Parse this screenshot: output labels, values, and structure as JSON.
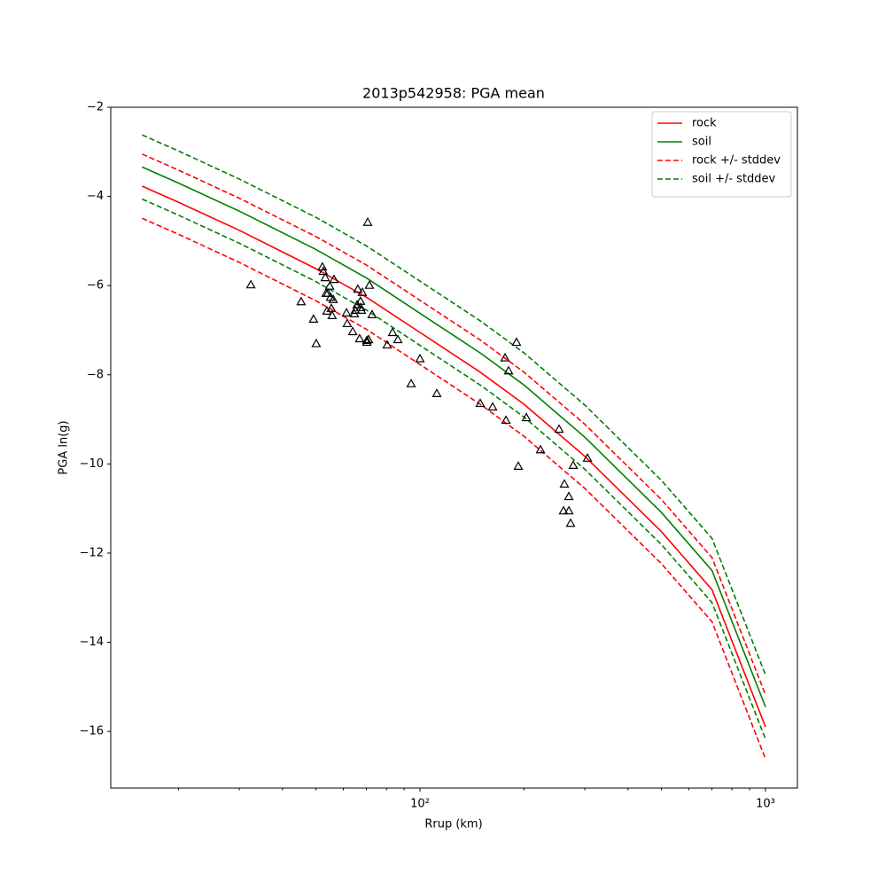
{
  "chart_data": {
    "type": "line",
    "title": "2013p542958: PGA mean",
    "x_label": "Rrup (km)",
    "y_label": "PGA ln(g)",
    "x_scale": "log",
    "xlim": [
      12.74,
      1237
    ],
    "ylim": [
      -17.27,
      -2.0
    ],
    "xticks": [
      {
        "value": 100,
        "label": "10²"
      },
      {
        "value": 1000,
        "label": "10³"
      }
    ],
    "xminorticks": [
      20,
      30,
      40,
      50,
      60,
      70,
      80,
      90,
      200,
      300,
      400,
      500,
      600,
      700,
      800,
      900
    ],
    "yticks": [
      {
        "value": -2,
        "label": "−2"
      },
      {
        "value": -4,
        "label": "−4"
      },
      {
        "value": -6,
        "label": "−6"
      },
      {
        "value": -8,
        "label": "−8"
      },
      {
        "value": -10,
        "label": "−10"
      },
      {
        "value": -12,
        "label": "−12"
      },
      {
        "value": -14,
        "label": "−14"
      },
      {
        "value": -16,
        "label": "−16"
      }
    ],
    "legend": "upper right",
    "x": [
      15.7,
      20,
      30,
      50,
      70,
      100,
      150,
      200,
      300,
      500,
      700,
      1000
    ],
    "series": [
      {
        "name": "rock",
        "color": "#ff0000",
        "dashed": false,
        "values": [
          -3.77,
          -4.13,
          -4.76,
          -5.62,
          -6.26,
          -7.05,
          -7.95,
          -8.66,
          -9.83,
          -11.52,
          -12.82,
          -15.9
        ]
      },
      {
        "name": "soil",
        "color": "#008000",
        "dashed": false,
        "values": [
          -3.34,
          -3.7,
          -4.33,
          -5.19,
          -5.83,
          -6.62,
          -7.52,
          -8.23,
          -9.4,
          -11.09,
          -12.39,
          -15.45
        ]
      },
      {
        "name": "rock +/- stddev",
        "color": "#ff0000",
        "dashed": true,
        "upper": [
          -3.05,
          -3.41,
          -4.04,
          -4.9,
          -5.54,
          -6.33,
          -7.23,
          -7.94,
          -9.11,
          -10.8,
          -12.1,
          -15.18
        ],
        "lower": [
          -4.49,
          -4.85,
          -5.48,
          -6.34,
          -6.98,
          -7.77,
          -8.67,
          -9.38,
          -10.55,
          -12.24,
          -13.54,
          -16.62
        ]
      },
      {
        "name": "soil +/- stddev",
        "color": "#008000",
        "dashed": true,
        "upper": [
          -2.62,
          -2.98,
          -3.61,
          -4.47,
          -5.11,
          -5.9,
          -6.8,
          -7.51,
          -8.68,
          -10.37,
          -11.67,
          -14.73
        ],
        "lower": [
          -4.06,
          -4.42,
          -5.05,
          -5.91,
          -6.55,
          -7.34,
          -8.24,
          -8.95,
          -10.12,
          -11.81,
          -13.11,
          -16.17
        ]
      }
    ],
    "observations": {
      "marker": "triangle",
      "color": "#000000",
      "x": [
        32.4,
        45.3,
        49.2,
        50.1,
        52.2,
        52.5,
        53.2,
        53.5,
        53.8,
        54.1,
        54.8,
        55.1,
        55.4,
        55.7,
        56.1,
        56.4,
        61.3,
        61.6,
        63.9,
        64.6,
        65.0,
        65.8,
        66.1,
        66.9,
        67.3,
        67.3,
        67.7,
        68.1,
        70.2,
        70.2,
        71.0,
        70.6,
        71.4,
        72.7,
        80.4,
        83.3,
        86.3,
        94.3,
        100,
        111.9,
        149.4,
        162.3,
        176.3,
        177.4,
        180.5,
        190.3,
        192.6,
        203.2,
        223.3,
        252.7,
        261.8,
        260.3,
        269.7,
        269.7,
        272.9,
        277.7,
        305.3
      ],
      "y": [
        -5.98,
        -6.36,
        -6.75,
        -7.3,
        -5.58,
        -5.68,
        -5.82,
        -6.17,
        -6.57,
        -6.17,
        -6.01,
        -6.26,
        -6.51,
        -6.67,
        -6.31,
        -5.86,
        -6.61,
        -6.85,
        -7.03,
        -6.63,
        -6.55,
        -6.43,
        -6.08,
        -7.19,
        -6.35,
        -6.49,
        -6.55,
        -6.15,
        -7.23,
        -7.27,
        -7.21,
        -4.58,
        -5.99,
        -6.65,
        -7.33,
        -7.05,
        -7.21,
        -8.2,
        -7.64,
        -8.42,
        -8.64,
        -8.72,
        -7.62,
        -9.02,
        -7.91,
        -7.27,
        -10.05,
        -8.96,
        -9.68,
        -9.22,
        -10.45,
        -11.05,
        -10.73,
        -11.05,
        -11.33,
        -10.03,
        -9.87
      ]
    }
  }
}
